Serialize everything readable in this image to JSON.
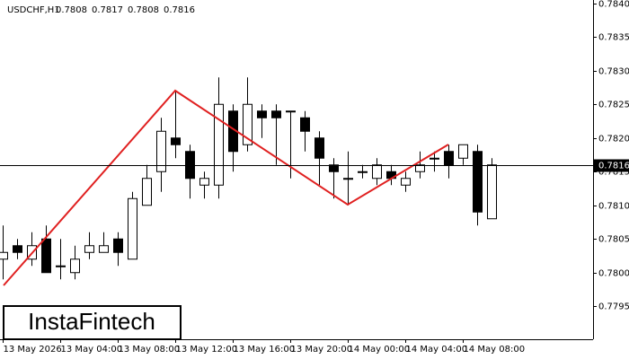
{
  "chart_data": {
    "type": "candlestick",
    "title": "USDCHF,H1",
    "header_values": [
      0.7808,
      0.7817,
      0.7808,
      0.7816
    ],
    "watermark": "InstaFintech",
    "categories": [
      "13 May 2026",
      null,
      null,
      null,
      "13 May 04:00",
      null,
      null,
      null,
      "13 May 08:00",
      null,
      null,
      null,
      "13 May 12:00",
      null,
      null,
      null,
      "13 May 16:00",
      null,
      null,
      null,
      "13 May 20:00",
      null,
      null,
      null,
      "14 May 00:00",
      null,
      null,
      null,
      "14 May 04:00",
      null,
      null,
      null,
      "14 May 08:00",
      null,
      null
    ],
    "open": [
      0.7802,
      0.7804,
      0.7802,
      0.7805,
      0.7801,
      0.78,
      0.7803,
      0.7803,
      0.7805,
      0.7802,
      0.781,
      0.7815,
      0.782,
      0.7818,
      0.7813,
      0.7813,
      0.7824,
      0.7819,
      0.7824,
      0.7824,
      0.7824,
      0.7823,
      0.782,
      0.7816,
      0.7814,
      0.7815,
      0.7814,
      0.7815,
      0.7813,
      0.7815,
      0.7817,
      0.7818,
      0.7817,
      0.7818,
      0.7808
    ],
    "high": [
      0.7807,
      0.7805,
      0.7806,
      0.7807,
      0.7805,
      0.7804,
      0.7806,
      0.7806,
      0.7806,
      0.7812,
      0.7816,
      0.7823,
      0.7827,
      0.7819,
      0.7815,
      0.7829,
      0.7825,
      0.7829,
      0.7825,
      0.7825,
      0.7824,
      0.7824,
      0.7821,
      0.7817,
      0.7818,
      0.7816,
      0.7817,
      0.7816,
      0.7815,
      0.7818,
      0.7818,
      0.7819,
      0.7819,
      0.7819,
      0.7817
    ],
    "low": [
      0.7799,
      0.7802,
      0.7801,
      0.78,
      0.7799,
      0.7799,
      0.7802,
      0.7803,
      0.7801,
      0.7802,
      0.781,
      0.7812,
      0.7817,
      0.7811,
      0.7811,
      0.7811,
      0.7815,
      0.7818,
      0.782,
      0.7816,
      0.7814,
      0.7818,
      0.7813,
      0.7811,
      0.781,
      0.7814,
      0.7813,
      0.7813,
      0.7812,
      0.7814,
      0.7815,
      0.7814,
      0.7816,
      0.7807,
      0.7808
    ],
    "close": [
      0.7803,
      0.7803,
      0.7804,
      0.78,
      0.7801,
      0.7802,
      0.7804,
      0.7804,
      0.7803,
      0.7811,
      0.7814,
      0.7821,
      0.7819,
      0.7814,
      0.7814,
      0.7825,
      0.7818,
      0.7825,
      0.7823,
      0.7823,
      0.7824,
      0.7821,
      0.7817,
      0.7815,
      0.7814,
      0.7815,
      0.7816,
      0.7814,
      0.7814,
      0.7816,
      0.7817,
      0.7816,
      0.7819,
      0.7809,
      0.7816
    ],
    "up_color": "#ffffff",
    "down_color": "#000000",
    "edge_color": "#000000",
    "last_price": 0.7816,
    "ylim": [
      0.77901,
      0.78405
    ],
    "yticks": [
      {
        "value": 0.784,
        "label": "0.7840"
      },
      {
        "value": 0.7835,
        "label": "0.7835"
      },
      {
        "value": 0.783,
        "label": "0.7830"
      },
      {
        "value": 0.7825,
        "label": "0.7825"
      },
      {
        "value": 0.782,
        "label": "0.7820"
      },
      {
        "value": 0.7815,
        "label": "0.7815"
      },
      {
        "value": 0.781,
        "label": "0.7810"
      },
      {
        "value": 0.7805,
        "label": "0.7805"
      },
      {
        "value": 0.78,
        "label": "0.7800"
      },
      {
        "value": 0.7795,
        "label": "0.7795"
      }
    ]
  }
}
